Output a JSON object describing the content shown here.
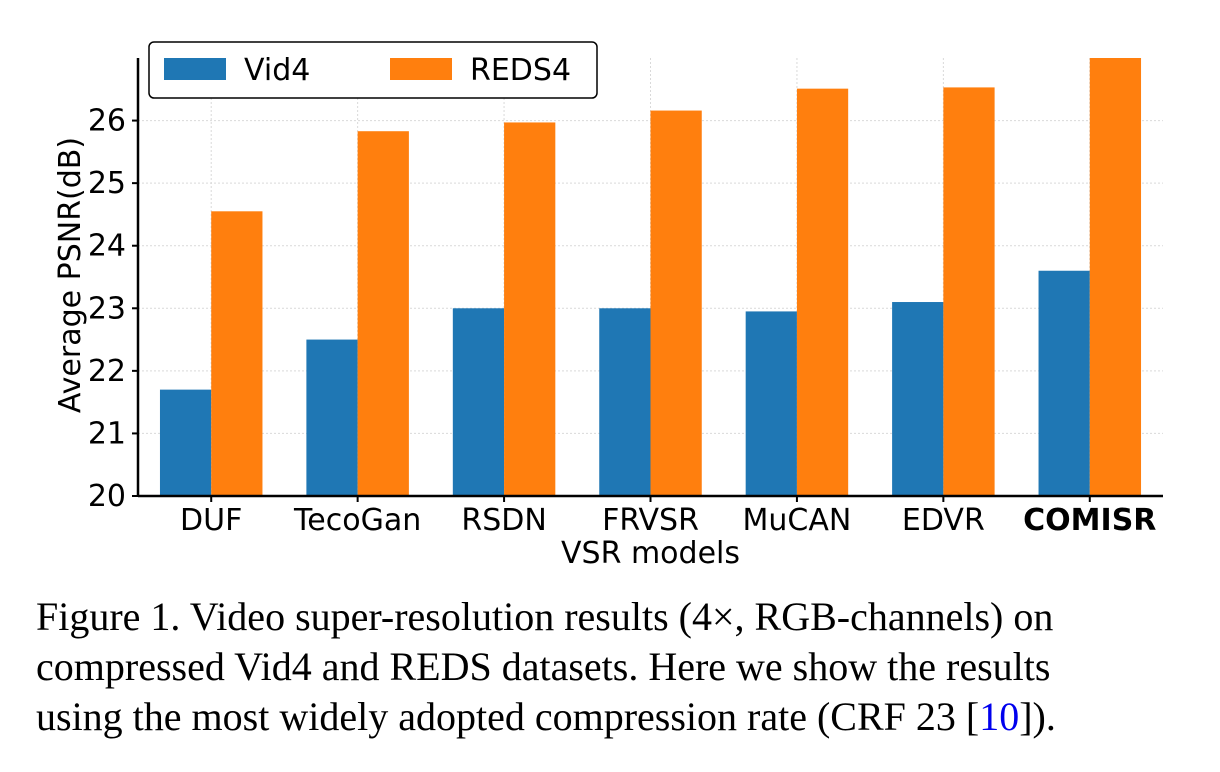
{
  "chart_data": {
    "type": "bar",
    "categories": [
      "DUF",
      "TecoGan",
      "RSDN",
      "FRVSR",
      "MuCAN",
      "EDVR",
      "COMISR"
    ],
    "highlight_category": "COMISR",
    "series": [
      {
        "name": "Vid4",
        "color": "#1f77b4",
        "values": [
          21.7,
          22.5,
          23.0,
          23.0,
          22.95,
          23.1,
          23.6
        ]
      },
      {
        "name": "REDS4",
        "color": "#ff7f0e",
        "values": [
          24.55,
          25.83,
          25.97,
          26.16,
          26.51,
          26.53,
          27.0
        ]
      }
    ],
    "xlabel": "VSR models",
    "ylabel": "Average PSNR(dB)",
    "ylim": [
      20,
      27.0
    ],
    "yticks": [
      20,
      21,
      22,
      23,
      24,
      25,
      26
    ],
    "grid": true,
    "legend_position": "top-left"
  },
  "caption": {
    "line1": "Figure 1. Video super-resolution results (4×, RGB-channels) on",
    "line2": "compressed Vid4 and REDS datasets.  Here we show the results",
    "line3_before": "using the most widely adopted compression rate (CRF 23 [",
    "ref": "10",
    "line3_after": "])."
  }
}
